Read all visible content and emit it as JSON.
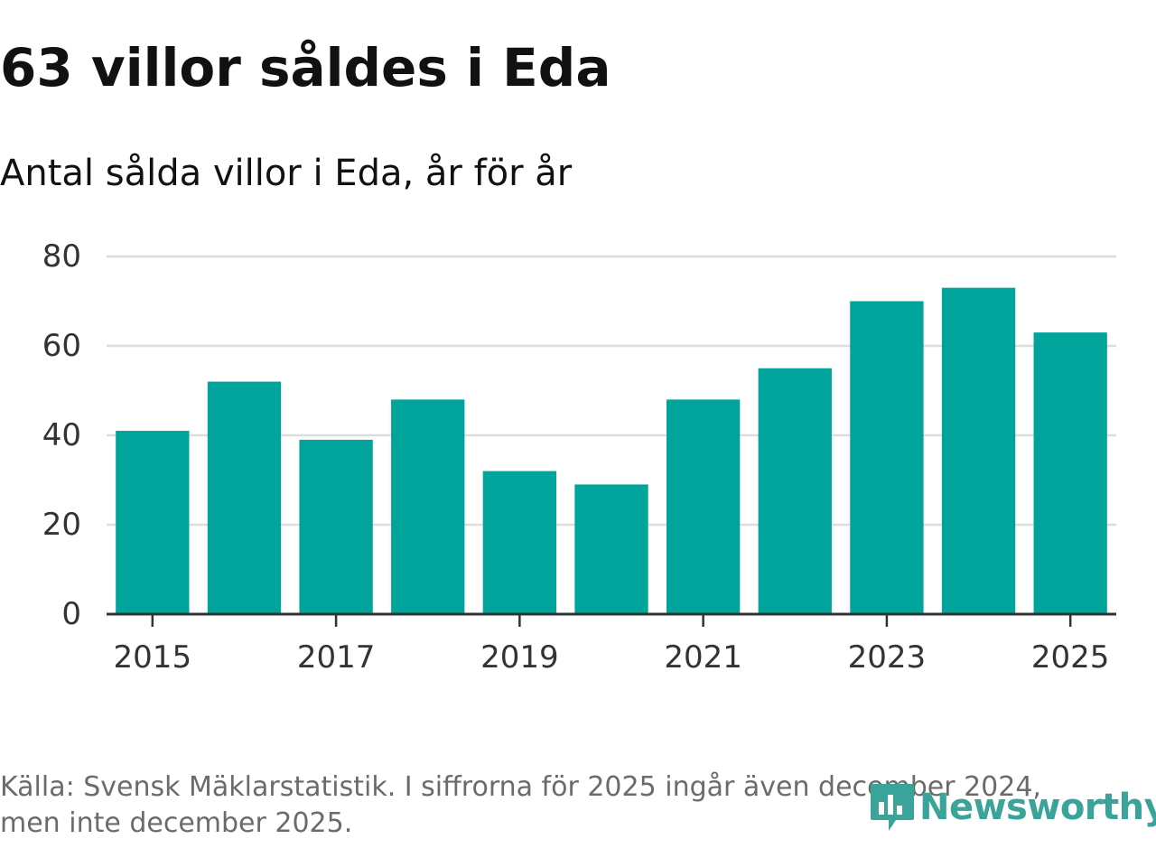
{
  "header": {
    "title": "63 villor såldes i Eda",
    "subtitle": "Antal sålda villor i Eda, år för år"
  },
  "chart_data": {
    "type": "bar",
    "categories": [
      "2015",
      "2016",
      "2017",
      "2018",
      "2019",
      "2020",
      "2021",
      "2022",
      "2023",
      "2024",
      "2025"
    ],
    "values": [
      41,
      52,
      39,
      48,
      32,
      29,
      48,
      55,
      70,
      73,
      63
    ],
    "x_tick_labels": [
      "2015",
      "2017",
      "2019",
      "2021",
      "2023",
      "2025"
    ],
    "y_ticks": [
      0,
      20,
      40,
      60,
      80
    ],
    "ylim": [
      0,
      80
    ],
    "xlabel": "",
    "ylabel": "",
    "grid": true,
    "bar_color": "#00a49a",
    "grid_color": "#dddddd",
    "axis_color": "#333333"
  },
  "footer": {
    "source_line1": "Källa: Svensk Mäklarstatistik. I siffrorna för 2025 ingår även december 2024,",
    "source_line2": "men inte december 2025.",
    "logo_text": "Newsworthy",
    "logo_icon": "newsworthy-bar-icon",
    "logo_color": "#3aa39a"
  }
}
